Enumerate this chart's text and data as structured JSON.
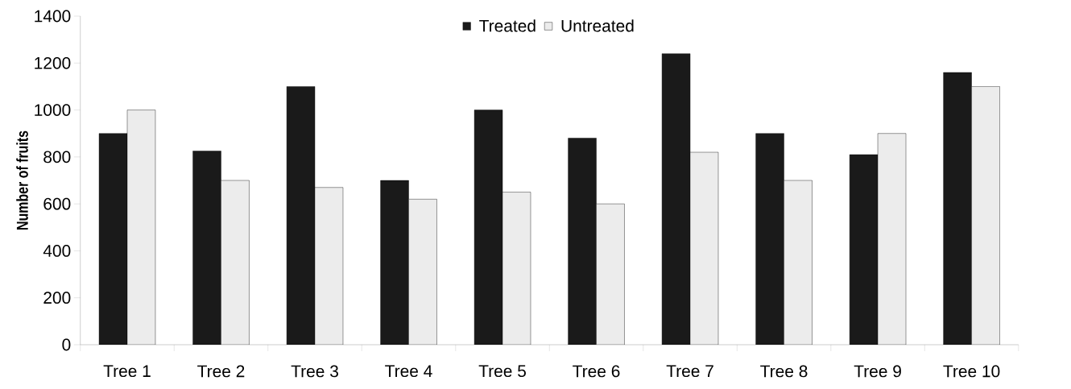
{
  "chart_data": {
    "type": "bar",
    "ylabel": "Number of fruits",
    "categories": [
      "Tree 1",
      "Tree 2",
      "Tree 3",
      "Tree 4",
      "Tree 5",
      "Tree 6",
      "Tree 7",
      "Tree 8",
      "Tree 9",
      "Tree 10"
    ],
    "series": [
      {
        "name": "Treated",
        "color": "#1a1a1a",
        "values": [
          900,
          825,
          1100,
          700,
          1000,
          880,
          1240,
          900,
          810,
          1160
        ]
      },
      {
        "name": "Untreated",
        "color": "#ececec",
        "values": [
          1000,
          700,
          670,
          620,
          650,
          600,
          820,
          700,
          900,
          1100
        ]
      }
    ],
    "ylim": [
      0,
      1400
    ],
    "yticks": [
      0,
      200,
      400,
      600,
      800,
      1000,
      1200,
      1400
    ],
    "grid": false,
    "legend": "top"
  }
}
